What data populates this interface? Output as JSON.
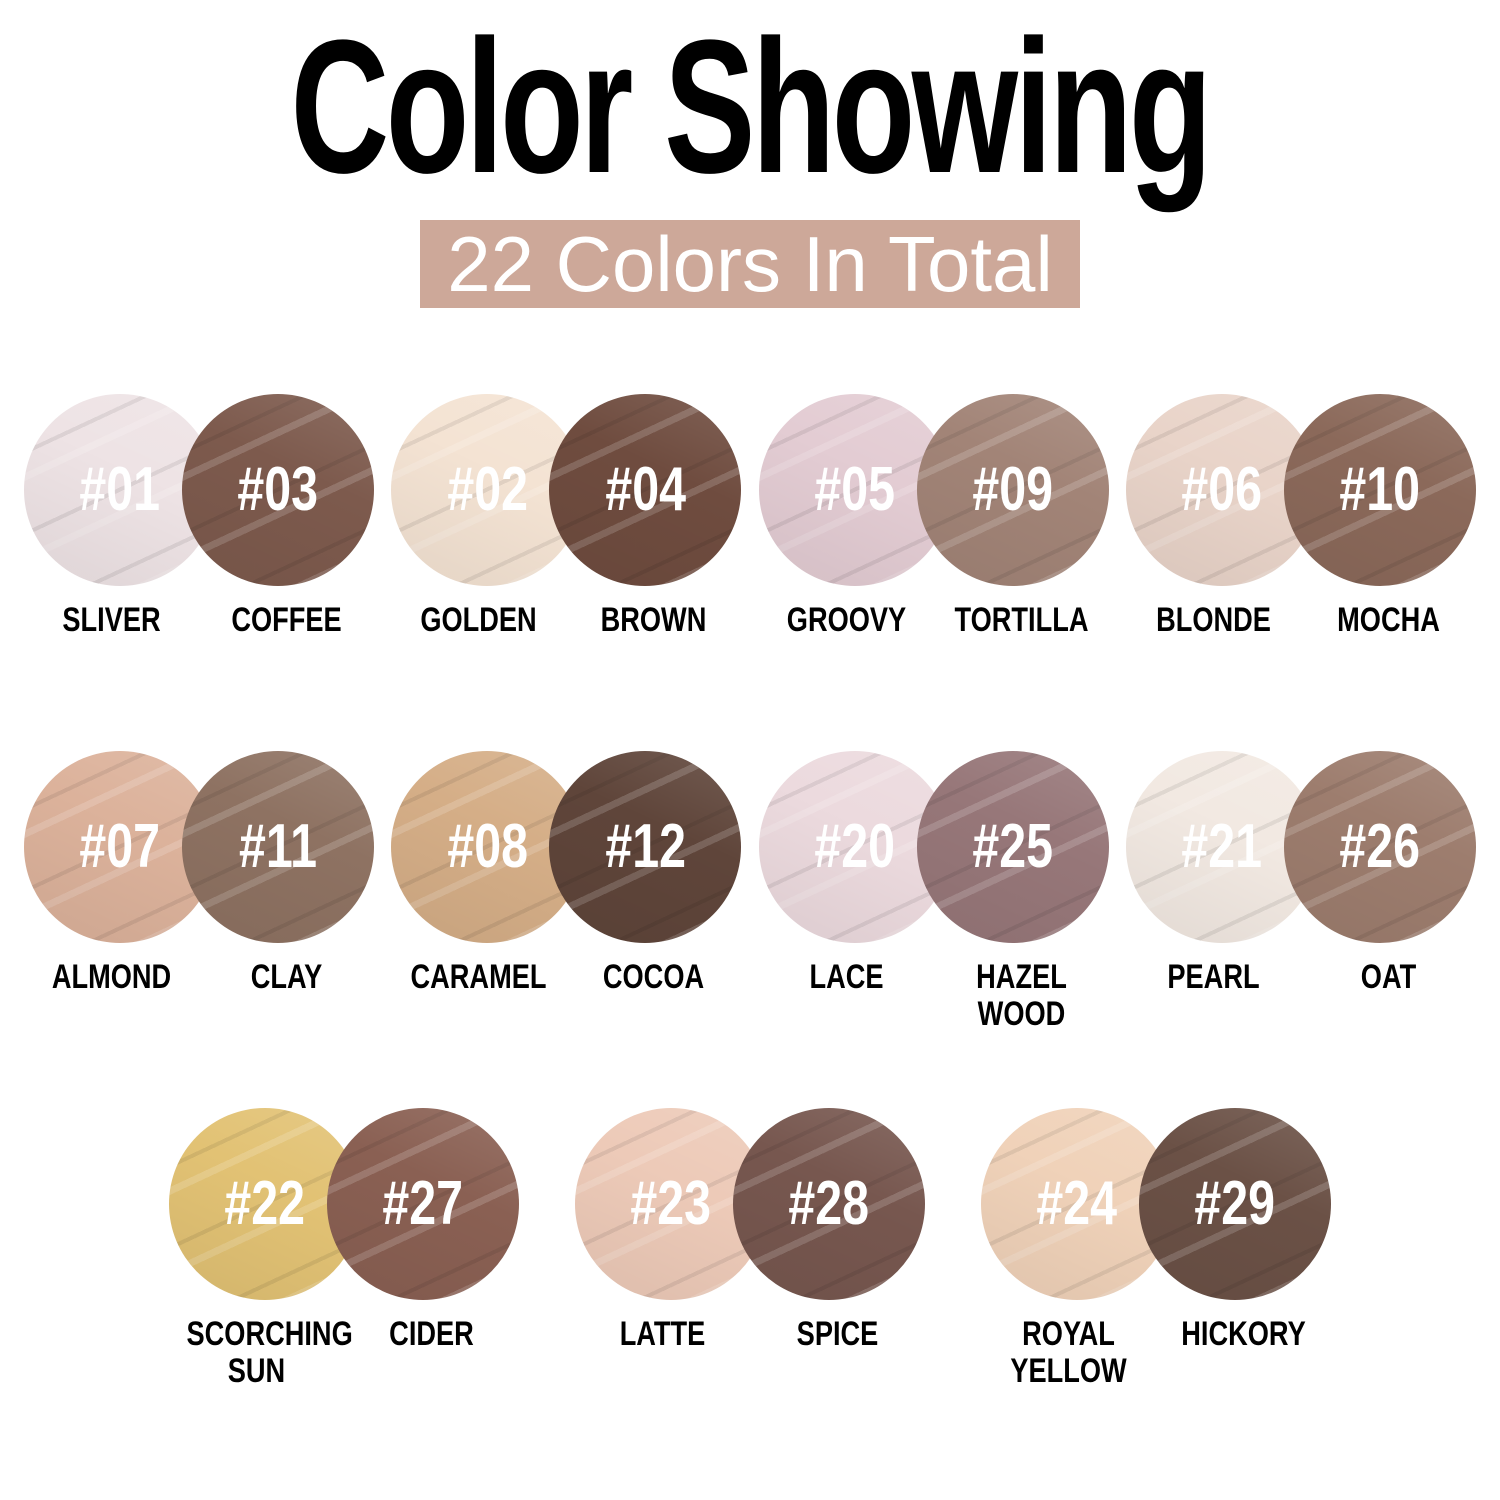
{
  "header": {
    "title": "Color Showing",
    "banner_text": "22 Colors In Total",
    "banner_bg": "#cda899",
    "banner_text_color": "#ffffff",
    "title_color": "#000000"
  },
  "rows": [
    {
      "pairs": [
        {
          "light": {
            "num": "#01",
            "name": "SLIVER",
            "color": "#eee3e5"
          },
          "dark": {
            "num": "#03",
            "name": "COFFEE",
            "color": "#7d5a4d"
          }
        },
        {
          "light": {
            "num": "#02",
            "name": "GOLDEN",
            "color": "#f4e3d3"
          },
          "dark": {
            "num": "#04",
            "name": "BROWN",
            "color": "#6f4c3f"
          }
        },
        {
          "light": {
            "num": "#05",
            "name": "GROOVY",
            "color": "#e3ccd3"
          },
          "dark": {
            "num": "#09",
            "name": "TORTILLA",
            "color": "#a28477"
          }
        },
        {
          "light": {
            "num": "#06",
            "name": "BLONDE",
            "color": "#e9d4c9"
          },
          "dark": {
            "num": "#10",
            "name": "MOCHA",
            "color": "#8b695a"
          }
        }
      ]
    },
    {
      "pairs": [
        {
          "light": {
            "num": "#07",
            "name": "ALMOND",
            "color": "#dcb29b"
          },
          "dark": {
            "num": "#11",
            "name": "CLAY",
            "color": "#8e7262"
          }
        },
        {
          "light": {
            "num": "#08",
            "name": "CARAMEL",
            "color": "#d5ae87"
          },
          "dark": {
            "num": "#12",
            "name": "COCOA",
            "color": "#5f453a"
          }
        },
        {
          "light": {
            "num": "#20",
            "name": "LACE",
            "color": "#ecdade"
          },
          "dark": {
            "num": "#25",
            "name": "HAZEL WOOD",
            "color": "#977779"
          }
        },
        {
          "light": {
            "num": "#21",
            "name": "PEARL",
            "color": "#f2e9e2"
          },
          "dark": {
            "num": "#26",
            "name": "OAT",
            "color": "#9d7d6e"
          }
        }
      ]
    },
    {
      "pairs": [
        {
          "light": {
            "num": "#22",
            "name": "SCORCHING SUN",
            "color": "#e2c274"
          },
          "dark": {
            "num": "#27",
            "name": "CIDER",
            "color": "#8a6053"
          }
        },
        {
          "light": {
            "num": "#23",
            "name": "LATTE",
            "color": "#edcab8"
          },
          "dark": {
            "num": "#28",
            "name": "SPICE",
            "color": "#77574f"
          }
        },
        {
          "light": {
            "num": "#24",
            "name": "ROYAL YELLOW",
            "color": "#f0d2b9"
          },
          "dark": {
            "num": "#29",
            "name": "HICKORY",
            "color": "#6b5146"
          }
        }
      ]
    }
  ]
}
